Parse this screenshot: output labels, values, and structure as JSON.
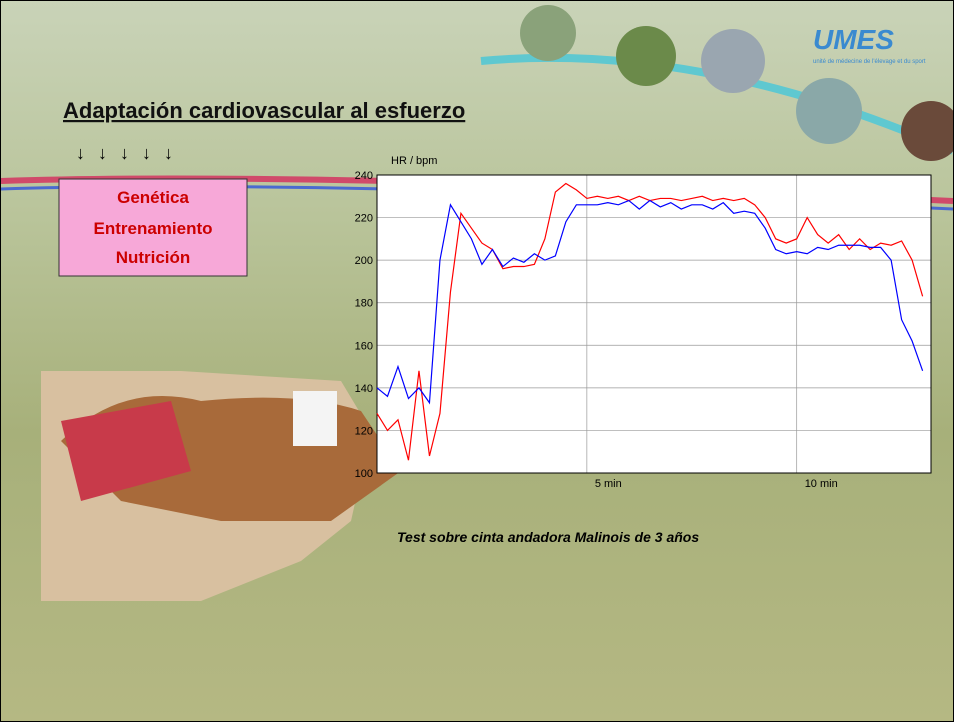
{
  "slide": {
    "title": "Adaptación cardiovascular al esfuerzo",
    "arrows": "↓ ↓ ↓ ↓ ↓",
    "factors": [
      "Genética",
      "Entrenamiento",
      "Nutrición"
    ],
    "caption": "Test  sobre cinta andadora Malinois de 3 años",
    "logo": "UMES",
    "logo_sub": "unité de médecine de l'élevage et du sport"
  },
  "chart_data": {
    "type": "line",
    "y_label": "HR / bpm",
    "x": [
      0,
      0.25,
      0.5,
      0.75,
      1,
      1.25,
      1.5,
      1.75,
      2,
      2.25,
      2.5,
      2.75,
      3,
      3.25,
      3.5,
      3.75,
      4,
      4.25,
      4.5,
      4.75,
      5,
      5.25,
      5.5,
      5.75,
      6,
      6.25,
      6.5,
      6.75,
      7,
      7.25,
      7.5,
      7.75,
      8,
      8.25,
      8.5,
      8.75,
      9,
      9.25,
      9.5,
      9.75,
      10,
      10.25,
      10.5,
      10.75,
      11,
      11.25,
      11.5,
      11.75,
      12,
      12.25,
      12.5,
      12.75,
      13
    ],
    "series": [
      {
        "color": "#ff0000",
        "values": [
          128,
          120,
          125,
          106,
          148,
          108,
          128,
          185,
          222,
          215,
          208,
          205,
          196,
          197,
          197,
          198,
          210,
          232,
          236,
          233,
          229,
          230,
          229,
          230,
          228,
          230,
          228,
          229,
          229,
          228,
          229,
          230,
          228,
          229,
          228,
          229,
          226,
          220,
          210,
          208,
          210,
          220,
          212,
          208,
          212,
          205,
          210,
          205,
          208,
          207,
          209,
          200,
          183
        ]
      },
      {
        "color": "#0000ff",
        "values": [
          140,
          136,
          150,
          135,
          140,
          133,
          200,
          226,
          218,
          210,
          198,
          205,
          197,
          201,
          199,
          203,
          200,
          202,
          218,
          226,
          226,
          226,
          227,
          226,
          228,
          224,
          228,
          225,
          227,
          224,
          226,
          226,
          224,
          227,
          222,
          223,
          222,
          215,
          205,
          203,
          204,
          203,
          206,
          205,
          207,
          207,
          207,
          206,
          206,
          200,
          172,
          162,
          148
        ]
      }
    ],
    "xlim": [
      0,
      13.2
    ],
    "xticks": [
      {
        "value": 5,
        "label": "5 min"
      },
      {
        "value": 10,
        "label": "10 min"
      }
    ],
    "ylim": [
      100,
      240
    ],
    "yticks": [
      100,
      120,
      140,
      160,
      180,
      200,
      220,
      240
    ],
    "grid": true
  }
}
